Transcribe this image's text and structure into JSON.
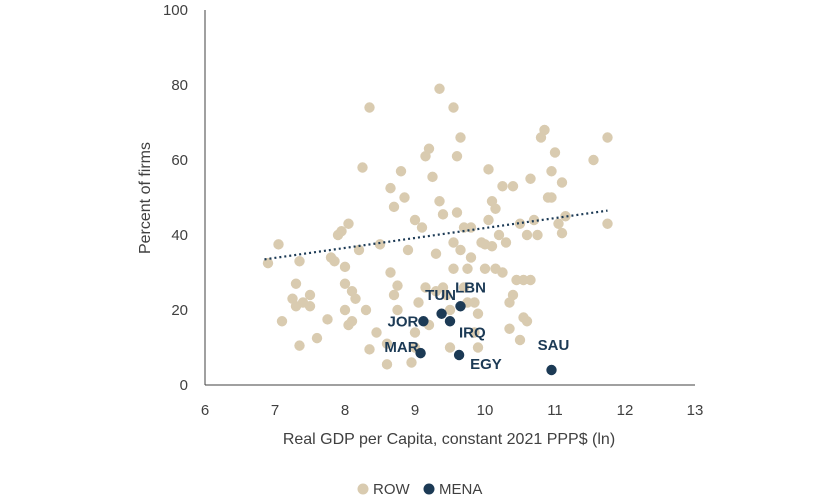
{
  "chart_data": {
    "type": "scatter",
    "title": "",
    "xlabel": "Real GDP per Capita, constant 2021 PPP$ (ln)",
    "ylabel": "Percent of firms",
    "xlim": [
      6,
      13
    ],
    "ylim": [
      0,
      100
    ],
    "xticks": [
      "6",
      "7",
      "8",
      "9",
      "10",
      "11",
      "12",
      "13"
    ],
    "yticks": [
      "0",
      "20",
      "40",
      "60",
      "80",
      "100"
    ],
    "grid": false,
    "legend_position": "bottom",
    "trendline": {
      "style": "dotted",
      "x": [
        6.85,
        11.75
      ],
      "y": [
        33.5,
        46.5
      ]
    },
    "colors": {
      "ROW": "#d9cbb0",
      "MENA": "#1c3a55",
      "axis": "#404040",
      "trend": "#1c3a55"
    },
    "series": [
      {
        "name": "ROW",
        "points": [
          [
            6.9,
            32.5
          ],
          [
            7.05,
            37.5
          ],
          [
            7.1,
            17
          ],
          [
            7.25,
            23
          ],
          [
            7.3,
            21
          ],
          [
            7.3,
            27
          ],
          [
            7.35,
            33
          ],
          [
            7.35,
            10.5
          ],
          [
            7.4,
            22
          ],
          [
            7.5,
            24
          ],
          [
            7.5,
            21
          ],
          [
            7.6,
            12.5
          ],
          [
            7.75,
            17.5
          ],
          [
            7.8,
            34
          ],
          [
            7.85,
            33
          ],
          [
            7.9,
            40
          ],
          [
            7.95,
            41
          ],
          [
            8.0,
            31.5
          ],
          [
            8.0,
            20
          ],
          [
            8.0,
            27
          ],
          [
            8.05,
            16
          ],
          [
            8.05,
            43
          ],
          [
            8.1,
            17
          ],
          [
            8.1,
            25
          ],
          [
            8.15,
            23
          ],
          [
            8.2,
            36
          ],
          [
            8.25,
            58
          ],
          [
            8.3,
            20
          ],
          [
            8.35,
            9.5
          ],
          [
            8.35,
            74
          ],
          [
            8.45,
            14
          ],
          [
            8.5,
            37.5
          ],
          [
            8.6,
            5.5
          ],
          [
            8.6,
            11
          ],
          [
            8.65,
            52.5
          ],
          [
            8.65,
            30
          ],
          [
            8.7,
            47.5
          ],
          [
            8.7,
            24
          ],
          [
            8.75,
            26.5
          ],
          [
            8.75,
            20
          ],
          [
            8.8,
            57
          ],
          [
            8.85,
            50
          ],
          [
            8.9,
            36
          ],
          [
            8.95,
            6
          ],
          [
            9.0,
            44
          ],
          [
            9.0,
            14
          ],
          [
            9.0,
            10
          ],
          [
            9.05,
            22
          ],
          [
            9.1,
            42
          ],
          [
            9.15,
            61
          ],
          [
            9.15,
            26
          ],
          [
            9.2,
            63
          ],
          [
            9.2,
            16
          ],
          [
            9.25,
            55.5
          ],
          [
            9.3,
            35
          ],
          [
            9.3,
            25
          ],
          [
            9.35,
            79
          ],
          [
            9.35,
            49
          ],
          [
            9.4,
            45.5
          ],
          [
            9.4,
            26
          ],
          [
            9.45,
            24
          ],
          [
            9.5,
            20
          ],
          [
            9.5,
            10
          ],
          [
            9.55,
            74
          ],
          [
            9.55,
            38
          ],
          [
            9.55,
            31
          ],
          [
            9.6,
            46
          ],
          [
            9.6,
            61
          ],
          [
            9.65,
            66
          ],
          [
            9.65,
            36
          ],
          [
            9.7,
            42
          ],
          [
            9.7,
            26
          ],
          [
            9.75,
            31
          ],
          [
            9.75,
            22
          ],
          [
            9.8,
            42
          ],
          [
            9.8,
            34
          ],
          [
            9.85,
            14
          ],
          [
            9.85,
            22
          ],
          [
            9.9,
            19
          ],
          [
            9.9,
            10
          ],
          [
            9.95,
            38
          ],
          [
            10.0,
            37.5
          ],
          [
            10.0,
            31
          ],
          [
            10.05,
            57.5
          ],
          [
            10.05,
            44
          ],
          [
            10.1,
            49
          ],
          [
            10.1,
            37
          ],
          [
            10.15,
            31
          ],
          [
            10.15,
            47
          ],
          [
            10.2,
            40
          ],
          [
            10.25,
            30
          ],
          [
            10.25,
            53
          ],
          [
            10.3,
            38
          ],
          [
            10.35,
            22
          ],
          [
            10.35,
            15
          ],
          [
            10.4,
            53
          ],
          [
            10.4,
            24
          ],
          [
            10.45,
            28
          ],
          [
            10.5,
            43
          ],
          [
            10.5,
            12
          ],
          [
            10.55,
            28
          ],
          [
            10.55,
            18
          ],
          [
            10.6,
            40
          ],
          [
            10.6,
            17
          ],
          [
            10.65,
            55
          ],
          [
            10.65,
            28
          ],
          [
            10.7,
            44
          ],
          [
            10.75,
            40
          ],
          [
            10.8,
            66
          ],
          [
            10.85,
            68
          ],
          [
            10.9,
            50
          ],
          [
            10.95,
            50
          ],
          [
            10.95,
            57
          ],
          [
            11.0,
            62
          ],
          [
            11.05,
            43
          ],
          [
            11.1,
            40.5
          ],
          [
            11.1,
            54
          ],
          [
            11.15,
            45
          ],
          [
            11.55,
            60
          ],
          [
            11.75,
            66
          ],
          [
            11.75,
            43
          ]
        ]
      },
      {
        "name": "MENA",
        "points": [
          {
            "label": "TUN",
            "x": 9.38,
            "y": 19
          },
          {
            "label": "LBN",
            "x": 9.65,
            "y": 21
          },
          {
            "label": "JOR",
            "x": 9.12,
            "y": 17
          },
          {
            "label": "IRQ",
            "x": 9.5,
            "y": 17
          },
          {
            "label": "MAR",
            "x": 9.08,
            "y": 8.5
          },
          {
            "label": "EGY",
            "x": 9.63,
            "y": 8
          },
          {
            "label": "SAU",
            "x": 10.95,
            "y": 4
          }
        ]
      }
    ]
  }
}
